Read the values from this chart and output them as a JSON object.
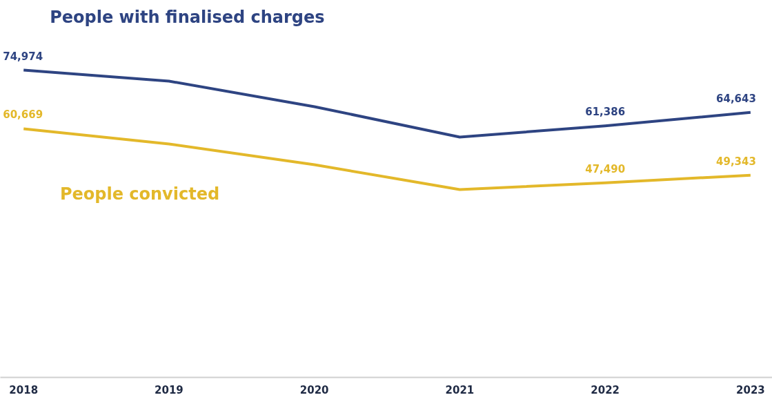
{
  "chart_data": {
    "type": "line",
    "categories": [
      "2018",
      "2019",
      "2020",
      "2021",
      "2022",
      "2023"
    ],
    "tick_labels": "x",
    "grid": false,
    "marker": "none",
    "line_style": "solid",
    "series": [
      {
        "name": "People with finalised charges",
        "color": "#2e4482",
        "values": [
          74974,
          72280,
          66050,
          58630,
          61386,
          64643
        ],
        "value_labels": [
          "74,974",
          null,
          null,
          null,
          "61,386",
          "64,643"
        ]
      },
      {
        "name": "People convicted",
        "color": "#e3b82a",
        "values": [
          60669,
          56950,
          51900,
          45830,
          47490,
          49343
        ],
        "value_labels": [
          "60,669",
          null,
          null,
          null,
          "47,490",
          "49,343"
        ]
      }
    ]
  }
}
